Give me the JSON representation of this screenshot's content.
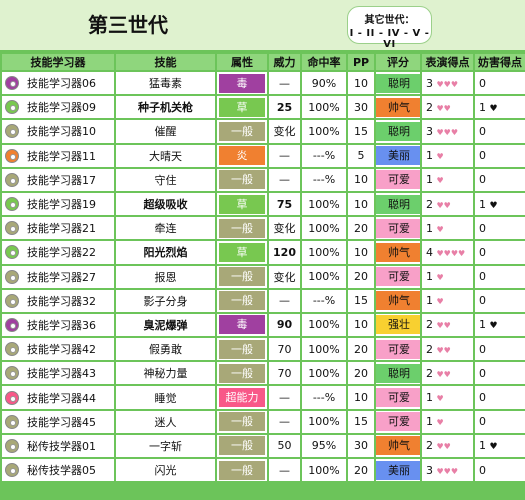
{
  "page_title": "第三世代",
  "other_gens": {
    "label": "其它世代：",
    "list": "I - II - IV - V - VI"
  },
  "colors": {
    "border_green": "#6cc45a",
    "header_green": "#8fd67d",
    "title_bg": "#dff2cf",
    "type_poison": "#a040a0",
    "type_grass": "#78c850",
    "type_normal": "#a8a878",
    "type_fire": "#f08030",
    "type_psychic": "#f85888",
    "cond_smart": "#6ccf6c",
    "cond_cool": "#f08030",
    "cond_cute": "#f8a0c8",
    "cond_beauty": "#6890f0",
    "cond_tough": "#f8d030"
  },
  "headers": [
    "技能学习器",
    "技能",
    "属性",
    "威力",
    "命中率",
    "PP",
    "评分",
    "表演得点",
    "妨害得点"
  ],
  "rows": [
    {
      "tm": "技能学习器06",
      "disc": "#a040a0",
      "move": "猛毒素",
      "bold": false,
      "type": "毒",
      "typeColor": "#a040a0",
      "power": "—",
      "acc": "90%",
      "pp": "10",
      "cond": "聪明",
      "condColor": "#6ccf6c",
      "appeal": "3",
      "appealHearts": "♥♥♥",
      "jam": "0",
      "jamHearts": ""
    },
    {
      "tm": "技能学习器09",
      "disc": "#78c850",
      "move": "种子机关枪",
      "bold": true,
      "type": "草",
      "typeColor": "#78c850",
      "power": "25",
      "acc": "100%",
      "pp": "30",
      "cond": "帅气",
      "condColor": "#f08030",
      "appeal": "2",
      "appealHearts": "♥♥",
      "jam": "1",
      "jamHearts": "♥"
    },
    {
      "tm": "技能学习器10",
      "disc": "#a8a878",
      "move": "催醒",
      "bold": false,
      "type": "一般",
      "typeColor": "#a8a878",
      "power": "变化",
      "acc": "100%",
      "pp": "15",
      "cond": "聪明",
      "condColor": "#6ccf6c",
      "appeal": "3",
      "appealHearts": "♥♥♥",
      "jam": "0",
      "jamHearts": ""
    },
    {
      "tm": "技能学习器11",
      "disc": "#f08030",
      "move": "大晴天",
      "bold": false,
      "type": "炎",
      "typeColor": "#f08030",
      "power": "—",
      "acc": "---%",
      "pp": "5",
      "cond": "美丽",
      "condColor": "#6890f0",
      "appeal": "1",
      "appealHearts": "♥",
      "jam": "0",
      "jamHearts": ""
    },
    {
      "tm": "技能学习器17",
      "disc": "#a8a878",
      "move": "守住",
      "bold": false,
      "type": "一般",
      "typeColor": "#a8a878",
      "power": "—",
      "acc": "---%",
      "pp": "10",
      "cond": "可爱",
      "condColor": "#f8a0c8",
      "appeal": "1",
      "appealHearts": "♥",
      "jam": "0",
      "jamHearts": ""
    },
    {
      "tm": "技能学习器19",
      "disc": "#78c850",
      "move": "超级吸收",
      "bold": true,
      "type": "草",
      "typeColor": "#78c850",
      "power": "75",
      "acc": "100%",
      "pp": "10",
      "cond": "聪明",
      "condColor": "#6ccf6c",
      "appeal": "2",
      "appealHearts": "♥♥",
      "jam": "1",
      "jamHearts": "♥"
    },
    {
      "tm": "技能学习器21",
      "disc": "#a8a878",
      "move": "牵连",
      "bold": false,
      "type": "一般",
      "typeColor": "#a8a878",
      "power": "变化",
      "acc": "100%",
      "pp": "20",
      "cond": "可爱",
      "condColor": "#f8a0c8",
      "appeal": "1",
      "appealHearts": "♥",
      "jam": "0",
      "jamHearts": ""
    },
    {
      "tm": "技能学习器22",
      "disc": "#78c850",
      "move": "阳光烈焰",
      "bold": true,
      "type": "草",
      "typeColor": "#78c850",
      "power": "120",
      "acc": "100%",
      "pp": "10",
      "cond": "帅气",
      "condColor": "#f08030",
      "appeal": "4",
      "appealHearts": "♥♥♥♥",
      "jam": "0",
      "jamHearts": ""
    },
    {
      "tm": "技能学习器27",
      "disc": "#a8a878",
      "move": "报恩",
      "bold": false,
      "type": "一般",
      "typeColor": "#a8a878",
      "power": "变化",
      "acc": "100%",
      "pp": "20",
      "cond": "可爱",
      "condColor": "#f8a0c8",
      "appeal": "1",
      "appealHearts": "♥",
      "jam": "0",
      "jamHearts": ""
    },
    {
      "tm": "技能学习器32",
      "disc": "#a8a878",
      "move": "影子分身",
      "bold": false,
      "type": "一般",
      "typeColor": "#a8a878",
      "power": "—",
      "acc": "---%",
      "pp": "15",
      "cond": "帅气",
      "condColor": "#f08030",
      "appeal": "1",
      "appealHearts": "♥",
      "jam": "0",
      "jamHearts": ""
    },
    {
      "tm": "技能学习器36",
      "disc": "#a040a0",
      "move": "臭泥爆弹",
      "bold": true,
      "type": "毒",
      "typeColor": "#a040a0",
      "power": "90",
      "acc": "100%",
      "pp": "10",
      "cond": "强壮",
      "condColor": "#f8d030",
      "appeal": "2",
      "appealHearts": "♥♥",
      "jam": "1",
      "jamHearts": "♥"
    },
    {
      "tm": "技能学习器42",
      "disc": "#a8a878",
      "move": "假勇敢",
      "bold": false,
      "type": "一般",
      "typeColor": "#a8a878",
      "power": "70",
      "acc": "100%",
      "pp": "20",
      "cond": "可爱",
      "condColor": "#f8a0c8",
      "appeal": "2",
      "appealHearts": "♥♥",
      "jam": "0",
      "jamHearts": ""
    },
    {
      "tm": "技能学习器43",
      "disc": "#a8a878",
      "move": "神秘力量",
      "bold": false,
      "type": "一般",
      "typeColor": "#a8a878",
      "power": "70",
      "acc": "100%",
      "pp": "20",
      "cond": "聪明",
      "condColor": "#6ccf6c",
      "appeal": "2",
      "appealHearts": "♥♥",
      "jam": "0",
      "jamHearts": ""
    },
    {
      "tm": "技能学习器44",
      "disc": "#f85888",
      "move": "睡觉",
      "bold": false,
      "type": "超能力",
      "typeColor": "#f85888",
      "power": "—",
      "acc": "---%",
      "pp": "10",
      "cond": "可爱",
      "condColor": "#f8a0c8",
      "appeal": "1",
      "appealHearts": "♥",
      "jam": "0",
      "jamHearts": ""
    },
    {
      "tm": "技能学习器45",
      "disc": "#a8a878",
      "move": "迷人",
      "bold": false,
      "type": "一般",
      "typeColor": "#a8a878",
      "power": "—",
      "acc": "100%",
      "pp": "15",
      "cond": "可爱",
      "condColor": "#f8a0c8",
      "appeal": "1",
      "appealHearts": "♥",
      "jam": "0",
      "jamHearts": ""
    },
    {
      "tm": "秘传技学器01",
      "disc": "#a8a878",
      "move": "一字斩",
      "bold": false,
      "type": "一般",
      "typeColor": "#a8a878",
      "power": "50",
      "acc": "95%",
      "pp": "30",
      "cond": "帅气",
      "condColor": "#f08030",
      "appeal": "2",
      "appealHearts": "♥♥",
      "jam": "1",
      "jamHearts": "♥"
    },
    {
      "tm": "秘传技学器05",
      "disc": "#a8a878",
      "move": "闪光",
      "bold": false,
      "type": "一般",
      "typeColor": "#a8a878",
      "power": "—",
      "acc": "100%",
      "pp": "20",
      "cond": "美丽",
      "condColor": "#6890f0",
      "appeal": "3",
      "appealHearts": "♥♥♥",
      "jam": "0",
      "jamHearts": ""
    }
  ]
}
